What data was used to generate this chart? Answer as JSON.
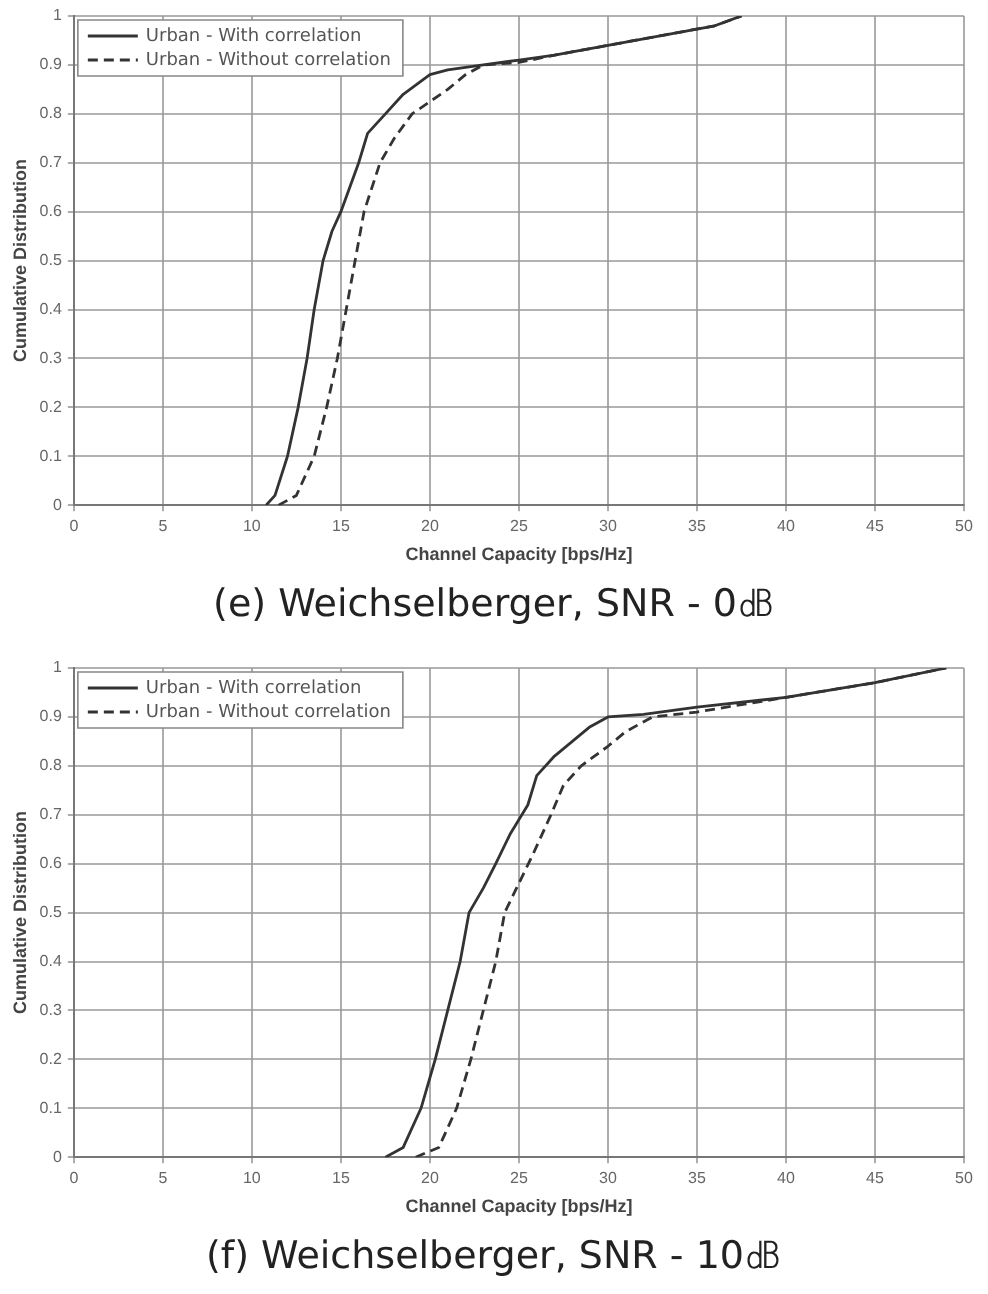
{
  "chart_data": [
    {
      "type": "line",
      "title": "(e) Weichselberger, SNR - 0㏈",
      "xlabel": "Channel Capacity [bps/Hz]",
      "ylabel": "Cumulative Distribution",
      "xlim": [
        0,
        50
      ],
      "ylim": [
        0,
        1
      ],
      "xticks": [
        0,
        5,
        10,
        15,
        20,
        25,
        30,
        35,
        40,
        45,
        50
      ],
      "yticks": [
        0,
        0.1,
        0.2,
        0.3,
        0.4,
        0.5,
        0.6,
        0.7,
        0.8,
        0.9,
        1
      ],
      "grid": true,
      "legend": "top left",
      "series": [
        {
          "name": "Urban - With correlation",
          "color": "#333333",
          "line_style": "solid",
          "x": [
            10.8,
            11.3,
            12,
            12.6,
            13.1,
            13.5,
            14,
            14.5,
            15,
            15.5,
            16,
            16.5,
            17.5,
            18.5,
            20,
            21,
            23,
            25,
            27,
            30,
            33,
            36,
            37.5
          ],
          "values": [
            0,
            0.02,
            0.1,
            0.2,
            0.3,
            0.4,
            0.5,
            0.56,
            0.6,
            0.65,
            0.7,
            0.76,
            0.8,
            0.84,
            0.88,
            0.89,
            0.9,
            0.91,
            0.92,
            0.94,
            0.96,
            0.98,
            1
          ]
        },
        {
          "name": "Urban - Without correlation",
          "color": "#333333",
          "line_style": "dashed",
          "x": [
            11.5,
            12.5,
            13.5,
            14.2,
            14.8,
            15.3,
            15.8,
            16.3,
            17.2,
            18,
            19,
            21,
            22,
            23,
            25,
            27,
            30,
            33,
            36,
            37.5
          ],
          "values": [
            0,
            0.02,
            0.1,
            0.2,
            0.3,
            0.4,
            0.5,
            0.6,
            0.7,
            0.75,
            0.8,
            0.85,
            0.88,
            0.9,
            0.905,
            0.92,
            0.94,
            0.96,
            0.98,
            1
          ]
        }
      ]
    },
    {
      "type": "line",
      "title": "(f) Weichselberger, SNR - 10㏈",
      "xlabel": "Channel Capacity [bps/Hz]",
      "ylabel": "Cumulative Distribution",
      "xlim": [
        0,
        50
      ],
      "ylim": [
        0,
        1
      ],
      "xticks": [
        0,
        5,
        10,
        15,
        20,
        25,
        30,
        35,
        40,
        45,
        50
      ],
      "yticks": [
        0,
        0.1,
        0.2,
        0.3,
        0.4,
        0.5,
        0.6,
        0.7,
        0.8,
        0.9,
        1
      ],
      "grid": true,
      "legend": "top left",
      "series": [
        {
          "name": "Urban - With correlation",
          "color": "#333333",
          "line_style": "solid",
          "x": [
            17.5,
            18.5,
            19.5,
            20.3,
            21,
            21.7,
            22.2,
            23,
            23.7,
            24.5,
            25.5,
            26,
            27,
            28,
            29,
            30,
            32,
            35,
            40,
            45,
            49
          ],
          "values": [
            0,
            0.02,
            0.1,
            0.2,
            0.3,
            0.4,
            0.5,
            0.55,
            0.6,
            0.66,
            0.72,
            0.78,
            0.82,
            0.85,
            0.88,
            0.9,
            0.905,
            0.92,
            0.94,
            0.97,
            1
          ]
        },
        {
          "name": "Urban - Without correlation",
          "color": "#333333",
          "line_style": "dashed",
          "x": [
            19.2,
            20.5,
            21.5,
            22.3,
            23,
            23.7,
            24.2,
            25,
            25.8,
            26.8,
            27.5,
            28.5,
            30,
            31,
            32.5,
            35,
            40,
            45,
            49
          ],
          "values": [
            0,
            0.02,
            0.1,
            0.2,
            0.3,
            0.4,
            0.5,
            0.56,
            0.62,
            0.7,
            0.76,
            0.8,
            0.84,
            0.87,
            0.9,
            0.91,
            0.94,
            0.97,
            1
          ]
        }
      ]
    }
  ]
}
